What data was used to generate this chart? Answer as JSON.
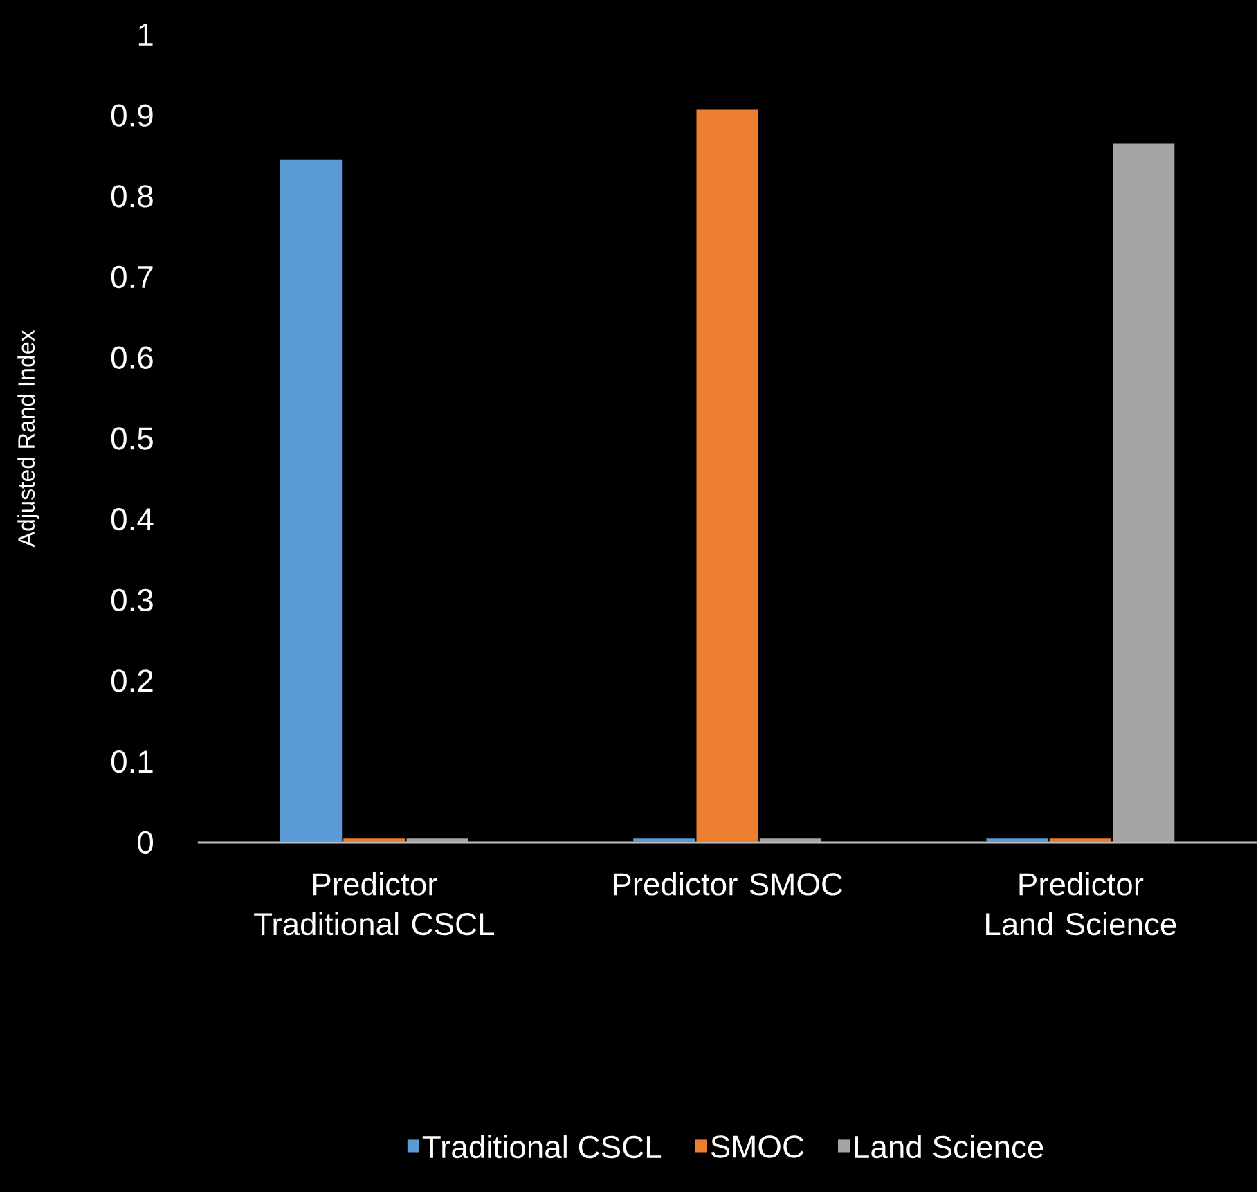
{
  "chart_data": {
    "type": "bar",
    "ylabel": "Adjusted Rand Index",
    "categories": [
      "Predictor Traditional CSCL",
      "Predictor SMOC",
      "Predictor Land Science"
    ],
    "series": [
      {
        "name": "Traditional CSCL",
        "color": "#5b9bd5",
        "values": [
          0.845,
          0.005,
          0.005
        ]
      },
      {
        "name": "SMOC",
        "color": "#ed7d31",
        "values": [
          0.005,
          0.907,
          0.005
        ]
      },
      {
        "name": "Land Science",
        "color": "#a5a5a5",
        "values": [
          0.005,
          0.005,
          0.865
        ]
      }
    ],
    "ylim": [
      0,
      1
    ],
    "yticks": [
      0,
      0.1,
      0.2,
      0.3,
      0.4,
      0.5,
      0.6,
      0.7,
      0.8,
      0.9,
      1
    ],
    "grid": false,
    "legend": "bottom"
  }
}
